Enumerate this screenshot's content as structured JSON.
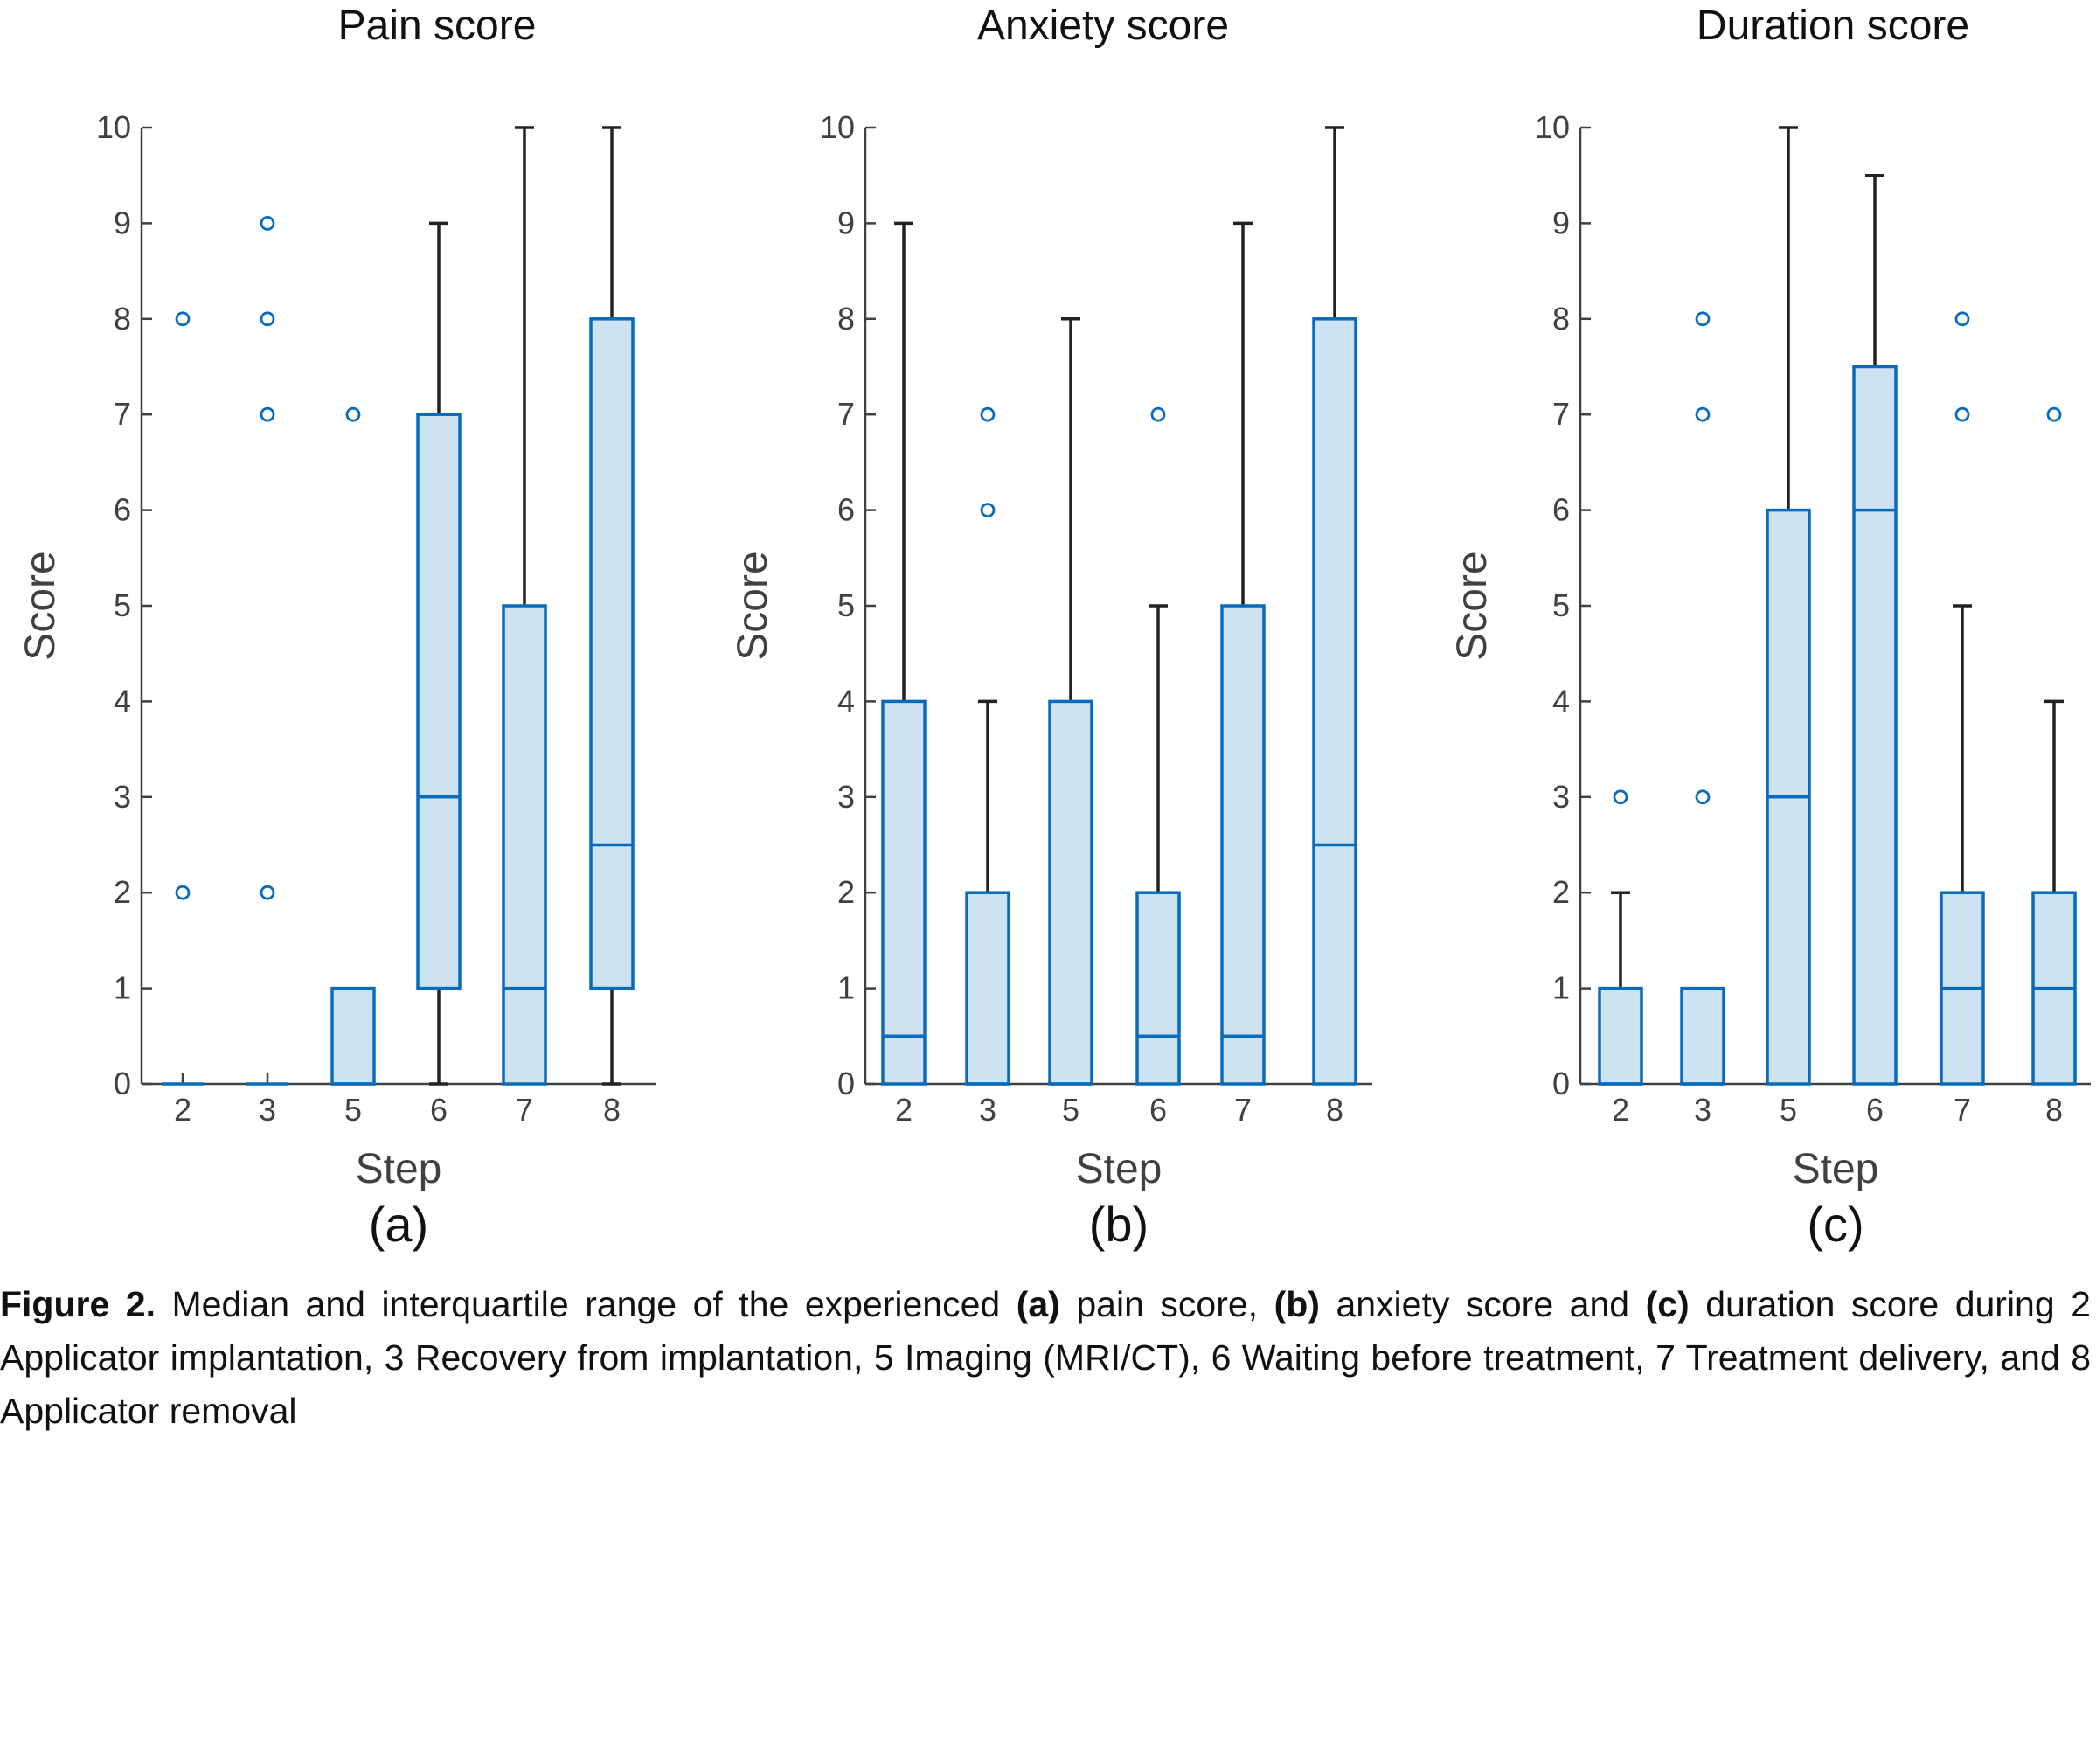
{
  "chart_data": [
    {
      "type": "box",
      "title": "Pain score",
      "panel_label": "(a)",
      "xlabel": "Step",
      "ylabel": "Score",
      "ylim": [
        0,
        10
      ],
      "yticks": [
        "0",
        "1",
        "2",
        "3",
        "4",
        "5",
        "6",
        "7",
        "8",
        "9",
        "10"
      ],
      "categories": [
        "2",
        "3",
        "5",
        "6",
        "7",
        "8"
      ],
      "boxes": [
        {
          "step": "2",
          "q1": 0,
          "median": 0,
          "q3": 0,
          "whisker_low": 0,
          "whisker_high": 0,
          "outliers": [
            2,
            8
          ]
        },
        {
          "step": "3",
          "q1": 0,
          "median": 0,
          "q3": 0,
          "whisker_low": 0,
          "whisker_high": 0,
          "outliers": [
            2,
            7,
            8,
            9
          ]
        },
        {
          "step": "5",
          "q1": 0,
          "median": 0,
          "q3": 1,
          "whisker_low": 0,
          "whisker_high": 1,
          "outliers": [
            7
          ]
        },
        {
          "step": "6",
          "q1": 1,
          "median": 3,
          "q3": 7,
          "whisker_low": 0,
          "whisker_high": 9,
          "outliers": []
        },
        {
          "step": "7",
          "q1": 0,
          "median": 1,
          "q3": 5,
          "whisker_low": 0,
          "whisker_high": 10,
          "outliers": []
        },
        {
          "step": "8",
          "q1": 1,
          "median": 2.5,
          "q3": 8,
          "whisker_low": 0,
          "whisker_high": 10,
          "outliers": []
        }
      ]
    },
    {
      "type": "box",
      "title": "Anxiety score",
      "panel_label": "(b)",
      "xlabel": "Step",
      "ylabel": "Score",
      "ylim": [
        0,
        10
      ],
      "yticks": [
        "0",
        "1",
        "2",
        "3",
        "4",
        "5",
        "6",
        "7",
        "8",
        "9",
        "10"
      ],
      "categories": [
        "2",
        "3",
        "5",
        "6",
        "7",
        "8"
      ],
      "boxes": [
        {
          "step": "2",
          "q1": 0,
          "median": 0.5,
          "q3": 4,
          "whisker_low": 0,
          "whisker_high": 9,
          "outliers": []
        },
        {
          "step": "3",
          "q1": 0,
          "median": 0,
          "q3": 2,
          "whisker_low": 0,
          "whisker_high": 4,
          "outliers": [
            6,
            7
          ]
        },
        {
          "step": "5",
          "q1": 0,
          "median": 0,
          "q3": 4,
          "whisker_low": 0,
          "whisker_high": 8,
          "outliers": []
        },
        {
          "step": "6",
          "q1": 0,
          "median": 0.5,
          "q3": 2,
          "whisker_low": 0,
          "whisker_high": 5,
          "outliers": [
            7
          ]
        },
        {
          "step": "7",
          "q1": 0,
          "median": 0.5,
          "q3": 5,
          "whisker_low": 0,
          "whisker_high": 9,
          "outliers": []
        },
        {
          "step": "8",
          "q1": 0,
          "median": 2.5,
          "q3": 8,
          "whisker_low": 0,
          "whisker_high": 10,
          "outliers": []
        }
      ]
    },
    {
      "type": "box",
      "title": "Duration score",
      "panel_label": "(c)",
      "xlabel": "Step",
      "ylabel": "Score",
      "ylim": [
        0,
        10
      ],
      "yticks": [
        "0",
        "1",
        "2",
        "3",
        "4",
        "5",
        "6",
        "7",
        "8",
        "9",
        "10"
      ],
      "categories": [
        "2",
        "3",
        "5",
        "6",
        "7",
        "8"
      ],
      "boxes": [
        {
          "step": "2",
          "q1": 0,
          "median": 0,
          "q3": 1,
          "whisker_low": 0,
          "whisker_high": 2,
          "outliers": [
            3
          ]
        },
        {
          "step": "3",
          "q1": 0,
          "median": 0,
          "q3": 1,
          "whisker_low": 0,
          "whisker_high": 1,
          "outliers": [
            3,
            7,
            8
          ]
        },
        {
          "step": "5",
          "q1": 0,
          "median": 3,
          "q3": 6,
          "whisker_low": 0,
          "whisker_high": 10,
          "outliers": []
        },
        {
          "step": "6",
          "q1": 0,
          "median": 6,
          "q3": 7.5,
          "whisker_low": 0,
          "whisker_high": 9.5,
          "outliers": []
        },
        {
          "step": "7",
          "q1": 0,
          "median": 1,
          "q3": 2,
          "whisker_low": 0,
          "whisker_high": 5,
          "outliers": [
            7,
            8
          ]
        },
        {
          "step": "8",
          "q1": 0,
          "median": 1,
          "q3": 2,
          "whisker_low": 0,
          "whisker_high": 4,
          "outliers": [
            7
          ]
        }
      ]
    }
  ],
  "colors": {
    "box_fill": "#cde3f1",
    "box_edge": "#0a6bbd",
    "whisker": "#222222",
    "axis": "#404040"
  },
  "caption": {
    "figure_label": "Figure 2.",
    "part1": " Median and interquartile range of the experienced ",
    "label_a": "(a)",
    "part2": " pain score, ",
    "label_b": "(b)",
    "part3": " anxiety score and ",
    "label_c": "(c)",
    "part4": " duration score during 2 Applicator implantation, 3 Recovery from implantation, 5 Imaging (MRI/CT), 6 Waiting before treatment, 7 Treatment delivery, and 8 Applicator removal"
  }
}
